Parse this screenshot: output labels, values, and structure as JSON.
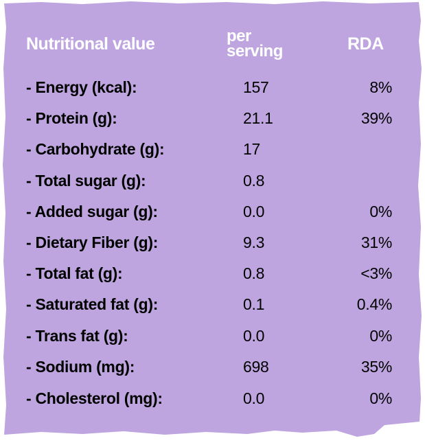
{
  "colors": {
    "card_background": "#bfa5e0",
    "header_text": "#ffffff",
    "body_text": "#000000"
  },
  "header": {
    "name": "Nutritional value",
    "per_line1": "per",
    "per_line2": "serving",
    "rda": "RDA"
  },
  "rows": [
    {
      "name": "- Energy (kcal):",
      "value": "157",
      "rda": "8%"
    },
    {
      "name": "- Protein (g):",
      "value": "21.1",
      "rda": "39%"
    },
    {
      "name": "- Carbohydrate (g):",
      "value": "17",
      "rda": ""
    },
    {
      "name": "- Total sugar (g):",
      "value": "0.8",
      "rda": ""
    },
    {
      "name": "- Added sugar (g):",
      "value": "0.0",
      "rda": "0%"
    },
    {
      "name": "- Dietary Fiber (g):",
      "value": "9.3",
      "rda": "31%"
    },
    {
      "name": "- Total fat (g):",
      "value": "0.8",
      "rda": "<3%"
    },
    {
      "name": "- Saturated fat (g):",
      "value": "0.1",
      "rda": "0.4%"
    },
    {
      "name": "- Trans fat (g):",
      "value": "0.0",
      "rda": "0%"
    },
    {
      "name": "- Sodium (mg):",
      "value": "698",
      "rda": "35%"
    },
    {
      "name": "- Cholesterol (mg):",
      "value": "0.0",
      "rda": "0%"
    }
  ]
}
